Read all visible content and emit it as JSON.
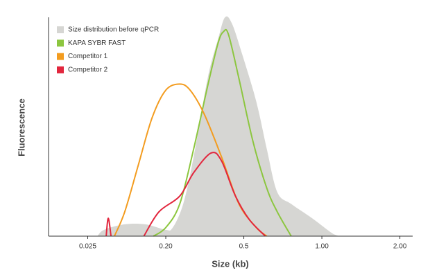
{
  "chart_data": {
    "type": "line",
    "xlabel": "Size (kb)",
    "ylabel": "Fluorescence",
    "xlim": [
      0.0088,
      2.24
    ],
    "xticks": [
      0.025,
      {
        "value": 0.2,
        "label": "0.20"
      },
      0.5,
      {
        "value": 1,
        "label": "1.00"
      },
      {
        "value": 2,
        "label": "2.00"
      }
    ],
    "ylim": [
      0,
      100
    ],
    "grid": false,
    "legend": "upper left",
    "series": [
      {
        "name": "Size distribution before qPCR",
        "color": "#d6d6d3",
        "fill": true,
        "x": [
          0.0323,
          0.0387,
          0.067,
          0.1157,
          0.2,
          0.217,
          0.2454,
          0.2774,
          0.3268,
          0.3694,
          0.4009,
          0.4351,
          0.4918,
          0.559,
          0.6133,
          0.673,
          0.7616,
          0.917,
          1.103,
          1.173
        ],
        "values": [
          0,
          2.9,
          5.4,
          5.4,
          2.9,
          3.9,
          14.7,
          36.2,
          72.0,
          90.0,
          100,
          97.1,
          82.8,
          61.3,
          39.8,
          20.1,
          14.7,
          8.2,
          1.1,
          0
        ]
      },
      {
        "name": "KAPA SYBR FAST",
        "color": "#8cc63f",
        "fill": false,
        "x": [
          0.144,
          0.2,
          0.2356,
          0.2774,
          0.3268,
          0.3694,
          0.3944,
          0.4177,
          0.4722,
          0.542,
          0.6133,
          0.673,
          0.7616
        ],
        "values": [
          0,
          3.9,
          14.7,
          39.8,
          68.5,
          88.2,
          93.5,
          92.1,
          72.0,
          43.4,
          21.9,
          11.1,
          0
        ]
      },
      {
        "name": "Competitor 1",
        "color": "#f39c1f",
        "fill": false,
        "x": [
          0.0509,
          0.067,
          0.0964,
          0.1389,
          0.2,
          0.2356,
          0.2663,
          0.3136,
          0.3848,
          0.4722,
          0.559,
          0.6133
        ],
        "values": [
          0,
          11.1,
          32.6,
          54.1,
          66.7,
          69.5,
          66.7,
          55.9,
          36.2,
          14.7,
          3.9,
          0
        ]
      },
      {
        "name": "Competitor 2",
        "color": "#e2263d",
        "fill": false,
        "x": [
          0.0409,
          0.0432,
          0.0465,
          null,
          0.1116,
          0.1667,
          0.2356,
          0.2774,
          0.3404,
          0.3848,
          0.4533,
          0.5255,
          0.6056
        ],
        "values": [
          0,
          8.2,
          0,
          null,
          0,
          11.1,
          18.3,
          29.0,
          38.0,
          34.4,
          18.3,
          7.5,
          0
        ]
      }
    ]
  }
}
